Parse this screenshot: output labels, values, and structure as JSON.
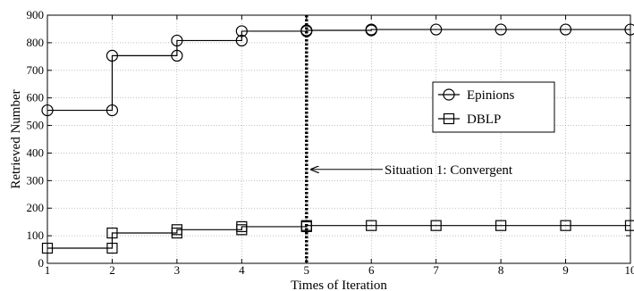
{
  "chart_data": {
    "type": "line",
    "xlabel": "Times of Iteration",
    "ylabel": "Retrieved Number",
    "xlim": [
      1,
      10
    ],
    "ylim": [
      0,
      900
    ],
    "xticks": [
      1,
      2,
      3,
      4,
      5,
      6,
      7,
      8,
      9,
      10
    ],
    "yticks": [
      0,
      100,
      200,
      300,
      400,
      500,
      600,
      700,
      800,
      900
    ],
    "grid": true,
    "step": true,
    "legend_position": "right-middle",
    "series": [
      {
        "name": "Epinions",
        "marker": "circle",
        "x": [
          1,
          2,
          2,
          3,
          3,
          4,
          4,
          5,
          5,
          6,
          6,
          7,
          8,
          9,
          10
        ],
        "y": [
          555,
          555,
          753,
          753,
          808,
          808,
          842,
          842,
          845,
          845,
          848,
          848,
          848,
          848,
          848
        ]
      },
      {
        "name": "DBLP",
        "marker": "square",
        "x": [
          1,
          2,
          2,
          3,
          3,
          4,
          4,
          5,
          5,
          6,
          7,
          8,
          9,
          10
        ],
        "y": [
          55,
          55,
          110,
          110,
          122,
          122,
          133,
          133,
          137,
          137,
          137,
          137,
          137,
          137
        ]
      }
    ],
    "vline": {
      "x": 5
    },
    "annotation": {
      "text": "Situation 1: Convergent",
      "x": 5,
      "y": 360
    }
  }
}
